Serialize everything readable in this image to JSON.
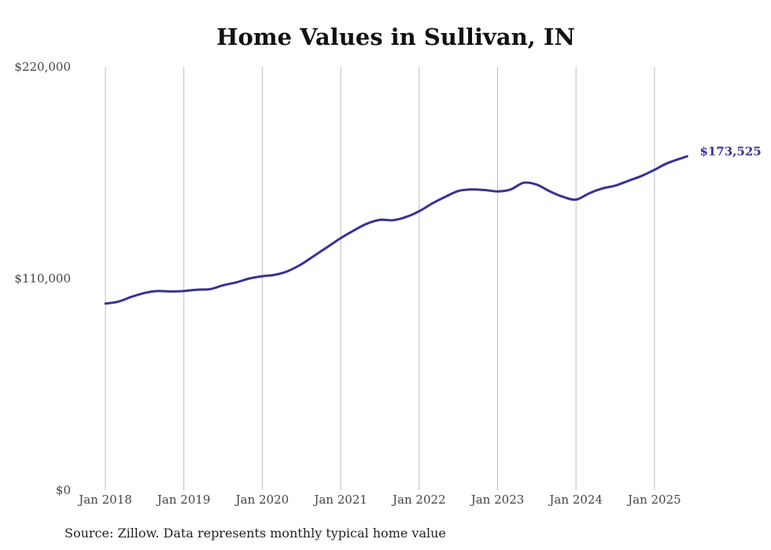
{
  "source_note": "Source: Zillow. Data represents monthly typical home value",
  "colors": {
    "line": "#3a3291",
    "grid": "#bdbdbd",
    "text": "#444444"
  },
  "chart_data": {
    "type": "line",
    "title": "Home Values in Sullivan, IN",
    "xlabel": "",
    "ylabel": "",
    "ylim": [
      0,
      220000
    ],
    "yticks": [
      0,
      110000,
      220000
    ],
    "ytick_labels": [
      "$0",
      "$110,000",
      "$220,000"
    ],
    "xlim": [
      "2018-01",
      "2025-06"
    ],
    "xticks": [
      "2018-01",
      "2019-01",
      "2020-01",
      "2021-01",
      "2022-01",
      "2023-01",
      "2024-01",
      "2025-01"
    ],
    "xtick_labels": [
      "Jan 2018",
      "Jan 2019",
      "Jan 2020",
      "Jan 2021",
      "Jan 2022",
      "Jan 2023",
      "Jan 2024",
      "Jan 2025"
    ],
    "grid": "vertical",
    "end_label": "$173,525",
    "series": [
      {
        "color": "#3a3291",
        "points": [
          [
            "2018-01",
            97000
          ],
          [
            "2018-03",
            98000
          ],
          [
            "2018-05",
            100500
          ],
          [
            "2018-07",
            102500
          ],
          [
            "2018-09",
            103500
          ],
          [
            "2018-11",
            103300
          ],
          [
            "2019-01",
            103500
          ],
          [
            "2019-03",
            104200
          ],
          [
            "2019-05",
            104500
          ],
          [
            "2019-07",
            106500
          ],
          [
            "2019-09",
            108000
          ],
          [
            "2019-11",
            110000
          ],
          [
            "2020-01",
            111200
          ],
          [
            "2020-03",
            112000
          ],
          [
            "2020-05",
            114000
          ],
          [
            "2020-07",
            117500
          ],
          [
            "2020-09",
            122000
          ],
          [
            "2020-11",
            126500
          ],
          [
            "2021-01",
            131000
          ],
          [
            "2021-03",
            135000
          ],
          [
            "2021-05",
            138500
          ],
          [
            "2021-07",
            140500
          ],
          [
            "2021-09",
            140300
          ],
          [
            "2021-11",
            142000
          ],
          [
            "2022-01",
            145000
          ],
          [
            "2022-03",
            149000
          ],
          [
            "2022-05",
            152500
          ],
          [
            "2022-07",
            155500
          ],
          [
            "2022-09",
            156300
          ],
          [
            "2022-11",
            156000
          ],
          [
            "2023-01",
            155300
          ],
          [
            "2023-03",
            156300
          ],
          [
            "2023-05",
            159800
          ],
          [
            "2023-07",
            158800
          ],
          [
            "2023-09",
            155300
          ],
          [
            "2023-11",
            152500
          ],
          [
            "2024-01",
            151000
          ],
          [
            "2024-03",
            154300
          ],
          [
            "2024-05",
            156800
          ],
          [
            "2024-07",
            158300
          ],
          [
            "2024-09",
            160800
          ],
          [
            "2024-11",
            163300
          ],
          [
            "2025-01",
            166500
          ],
          [
            "2025-03",
            170000
          ],
          [
            "2025-06",
            173525
          ]
        ]
      }
    ]
  }
}
